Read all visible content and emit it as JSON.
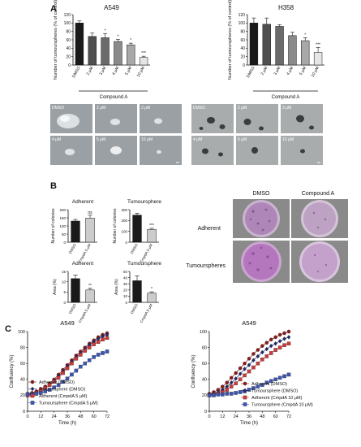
{
  "panels": {
    "A": "A",
    "B": "B",
    "C": "C"
  },
  "panel_a": {
    "a549": {
      "title": "A549",
      "ylabel": "Number of tumourspheres (% of control)",
      "group_label": "Compound A",
      "images": [
        {
          "label": "DMSO"
        },
        {
          "label": "2 μM"
        },
        {
          "label": "3 μM"
        },
        {
          "label": "4 μM"
        },
        {
          "label": "5 μM"
        },
        {
          "label": "10 μM"
        }
      ]
    },
    "h358": {
      "title": "H358",
      "ylabel": "Number of tumourspheres (% of control)",
      "group_label": "Compound A",
      "images": [
        {
          "label": "DMSO"
        },
        {
          "label": "2 μM"
        },
        {
          "label": "3 μM"
        },
        {
          "label": "4 μM"
        },
        {
          "label": "5 μM"
        },
        {
          "label": "10 μM"
        }
      ]
    }
  },
  "panel_b": {
    "stain": {
      "col_headers": [
        "DMSO",
        "Compound A"
      ],
      "row_headers": [
        "Adherent",
        "Tumourspheres"
      ]
    }
  },
  "chart_data": [
    {
      "id": "a549-bar",
      "type": "bar",
      "title": "A549",
      "ylabel": "Number of tumourspheres (% of control)",
      "categories": [
        "DMSO",
        "2 μM",
        "3 μM",
        "4 μM",
        "5 μM",
        "10 μM"
      ],
      "values": [
        100,
        68,
        65,
        56,
        48,
        18
      ],
      "errors": [
        5,
        8,
        10,
        5,
        4,
        3
      ],
      "colors": [
        "#1a1a1a",
        "#505050",
        "#6a6a6a",
        "#8a8a8a",
        "#a8a8a8",
        "#e6e6e6"
      ],
      "significance": [
        "",
        "",
        "*",
        "*",
        "*",
        "***"
      ],
      "yticks": [
        0,
        20,
        40,
        60,
        80,
        100,
        120
      ],
      "ylim": [
        0,
        120
      ]
    },
    {
      "id": "h358-bar",
      "type": "bar",
      "title": "H358",
      "ylabel": "Number of tumourspheres (% of control)",
      "categories": [
        "DMSO",
        "2 μM",
        "3 μM",
        "4 μM",
        "5 μM",
        "10 μM"
      ],
      "values": [
        100,
        97,
        92,
        70,
        58,
        30
      ],
      "errors": [
        12,
        15,
        4,
        8,
        7,
        12
      ],
      "colors": [
        "#1a1a1a",
        "#505050",
        "#6a6a6a",
        "#8a8a8a",
        "#a8a8a8",
        "#e6e6e6"
      ],
      "significance": [
        "",
        "",
        "",
        "",
        "*",
        "***"
      ],
      "yticks": [
        0,
        20,
        40,
        60,
        80,
        100,
        120
      ],
      "ylim": [
        0,
        120
      ]
    },
    {
      "id": "colonies-adherent",
      "type": "bar",
      "title": "Adherent",
      "ylabel": "Number of colonies",
      "categories": [
        "DMSO",
        "CmpdA 5 μM"
      ],
      "values": [
        130,
        148
      ],
      "errors": [
        10,
        18
      ],
      "colors": [
        "#1a1a1a",
        "#cccccc"
      ],
      "significance": [
        "",
        "ns"
      ],
      "yticks": [
        0,
        50,
        100,
        150,
        200
      ],
      "ylim": [
        0,
        200
      ]
    },
    {
      "id": "colonies-tumoursphere",
      "type": "bar",
      "title": "Tumoursphere",
      "ylabel": "Number of colonies",
      "categories": [
        "DMSO",
        "CmpdA 5 μM"
      ],
      "values": [
        250,
        118
      ],
      "errors": [
        18,
        10
      ],
      "colors": [
        "#1a1a1a",
        "#cccccc"
      ],
      "significance": [
        "",
        "***"
      ],
      "yticks": [
        0,
        100,
        200,
        300
      ],
      "ylim": [
        0,
        300
      ]
    },
    {
      "id": "area-adherent",
      "type": "bar",
      "title": "Adherent",
      "ylabel": "Area (%)",
      "categories": [
        "DMSO",
        "CmpdA 5 μM"
      ],
      "values": [
        11.5,
        6
      ],
      "errors": [
        1.8,
        0.8
      ],
      "colors": [
        "#1a1a1a",
        "#cccccc"
      ],
      "significance": [
        "",
        "**"
      ],
      "yticks": [
        0,
        5,
        10,
        15
      ],
      "ylim": [
        0,
        15
      ]
    },
    {
      "id": "area-tumoursphere",
      "type": "bar",
      "title": "Tumoursphere",
      "ylabel": "Area (%)",
      "categories": [
        "DMSO",
        "CmpdA 5 μM"
      ],
      "values": [
        35,
        15
      ],
      "errors": [
        8,
        2
      ],
      "colors": [
        "#1a1a1a",
        "#cccccc"
      ],
      "significance": [
        "",
        "*"
      ],
      "yticks": [
        0,
        10,
        20,
        30,
        40,
        50
      ],
      "ylim": [
        0,
        50
      ]
    },
    {
      "id": "confluency-left",
      "type": "line",
      "title": "A549",
      "xlabel": "Time (h)",
      "ylabel": "Confluency (%)",
      "x": [
        0,
        4,
        8,
        12,
        16,
        20,
        24,
        28,
        32,
        36,
        40,
        44,
        48,
        52,
        56,
        60,
        64,
        68,
        72
      ],
      "xticks": [
        0,
        12,
        24,
        36,
        48,
        60,
        72
      ],
      "yticks": [
        0,
        20,
        40,
        60,
        80,
        100
      ],
      "xlim": [
        0,
        72
      ],
      "ylim": [
        0,
        100
      ],
      "series": [
        {
          "name": "Adherent (DMSO)",
          "color": "#8b1a1a",
          "marker": "circle",
          "values": [
            22,
            23,
            25,
            28,
            31,
            35,
            40,
            46,
            52,
            58,
            64,
            70,
            75,
            80,
            85,
            89,
            93,
            96,
            98
          ]
        },
        {
          "name": "Tumoursphere (DMSO)",
          "color": "#1f2a6b",
          "marker": "diamond",
          "values": [
            21,
            22,
            23,
            26,
            29,
            33,
            38,
            44,
            50,
            56,
            62,
            68,
            73,
            78,
            83,
            87,
            91,
            94,
            96
          ]
        },
        {
          "name": "Adherent (CmpdA 5 μM)",
          "color": "#d03a3a",
          "marker": "square",
          "values": [
            20,
            21,
            23,
            26,
            29,
            33,
            37,
            42,
            48,
            54,
            60,
            66,
            71,
            76,
            80,
            84,
            87,
            90,
            92
          ]
        },
        {
          "name": "Tumoursphere (CmpdA 5 μM)",
          "color": "#3b57b5",
          "marker": "square",
          "values": [
            21,
            21,
            22,
            23,
            25,
            27,
            30,
            33,
            37,
            41,
            46,
            51,
            56,
            60,
            64,
            68,
            71,
            73,
            75
          ]
        }
      ]
    },
    {
      "id": "confluency-right",
      "type": "line",
      "title": "A549",
      "xlabel": "Time (h)",
      "ylabel": "Confluency (%)",
      "x": [
        0,
        4,
        8,
        12,
        16,
        20,
        24,
        28,
        32,
        36,
        40,
        44,
        48,
        52,
        56,
        60,
        64,
        68,
        72
      ],
      "xticks": [
        0,
        12,
        24,
        36,
        48,
        60,
        72
      ],
      "yticks": [
        0,
        20,
        40,
        60,
        80,
        100
      ],
      "xlim": [
        0,
        72
      ],
      "ylim": [
        0,
        100
      ],
      "series": [
        {
          "name": "Adherent (DMSO)",
          "color": "#8b1a1a",
          "marker": "circle",
          "values": [
            22,
            24,
            27,
            31,
            36,
            42,
            48,
            54,
            60,
            66,
            72,
            77,
            82,
            86,
            90,
            93,
            96,
            98,
            100
          ]
        },
        {
          "name": "Tumoursphere (DMSO)",
          "color": "#1f2a6b",
          "marker": "diamond",
          "values": [
            21,
            22,
            24,
            27,
            31,
            36,
            41,
            47,
            53,
            58,
            64,
            69,
            74,
            78,
            82,
            85,
            88,
            91,
            93
          ]
        },
        {
          "name": "Adherent (CmpdA 10 μM)",
          "color": "#d03a3a",
          "marker": "square",
          "values": [
            20,
            21,
            22,
            24,
            27,
            31,
            35,
            40,
            45,
            50,
            55,
            60,
            65,
            69,
            73,
            77,
            80,
            83,
            85
          ]
        },
        {
          "name": "Tumoursphere (CmpdA 10 μM)",
          "color": "#3b57b5",
          "marker": "square",
          "values": [
            20,
            20,
            21,
            21,
            22,
            22,
            23,
            24,
            25,
            27,
            29,
            31,
            33,
            36,
            38,
            40,
            42,
            44,
            46
          ]
        }
      ]
    }
  ]
}
